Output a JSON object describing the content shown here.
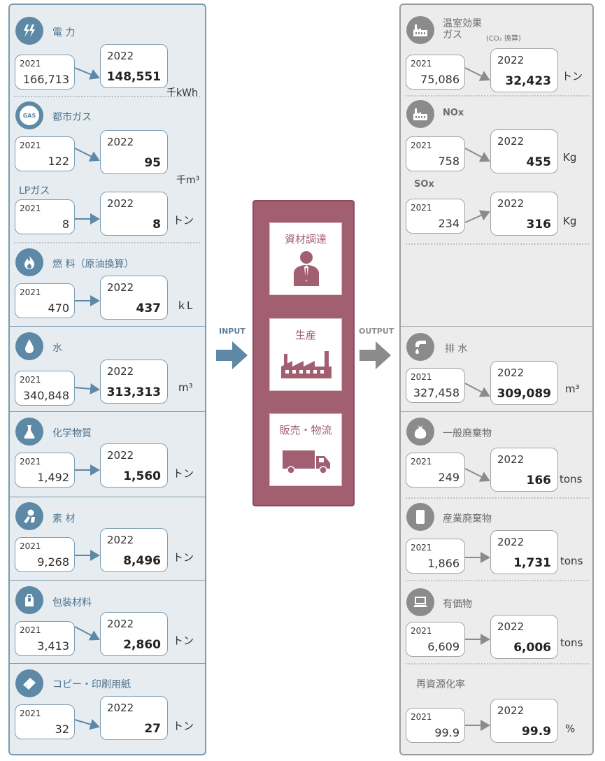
{
  "flow": {
    "input_label": "INPUT",
    "output_label": "OUTPUT"
  },
  "center": {
    "items": [
      "資材調達",
      "生産",
      "販売・物流"
    ]
  },
  "input": [
    {
      "label": "電 力",
      "y1": "2021",
      "v1": "166,713",
      "y2": "2022",
      "v2": "148,551",
      "unit": "千kWh",
      "icon": "electricity-icon"
    },
    {
      "label": "都市ガス",
      "y1": "2021",
      "v1": "122",
      "y2": "2022",
      "v2": "95",
      "unit": "千m³",
      "icon": "gas-icon",
      "icon_text": "GAS"
    },
    {
      "label": "LPガス",
      "y1": "2021",
      "v1": "8",
      "y2": "2022",
      "v2": "8",
      "unit": "トン"
    },
    {
      "label": "燃 料（原油換算）",
      "y1": "2021",
      "v1": "470",
      "y2": "2022",
      "v2": "437",
      "unit": "ｋL",
      "icon": "flame-icon"
    },
    {
      "label": "水",
      "y1": "2021",
      "v1": "340,848",
      "y2": "2022",
      "v2": "313,313",
      "unit": "m³",
      "icon": "water-drop-icon"
    },
    {
      "label": "化学物質",
      "y1": "2021",
      "v1": "1,492",
      "y2": "2022",
      "v2": "1,560",
      "unit": "トン",
      "icon": "flask-icon"
    },
    {
      "label": "素 材",
      "y1": "2021",
      "v1": "9,268",
      "y2": "2022",
      "v2": "8,496",
      "unit": "トン",
      "icon": "material-icon"
    },
    {
      "label": "包装材料",
      "y1": "2021",
      "v1": "3,413",
      "y2": "2022",
      "v2": "2,860",
      "unit": "トン",
      "icon": "package-icon"
    },
    {
      "label": "コピー・印刷用紙",
      "y1": "2021",
      "v1": "32",
      "y2": "2022",
      "v2": "27",
      "unit": "トン",
      "icon": "paper-icon"
    }
  ],
  "output": [
    {
      "label": "温室効果\nガス",
      "sublabel": "(CO₂ 換算)",
      "y1": "2021",
      "v1": "75,086",
      "y2": "2022",
      "v2": "32,423",
      "unit": "トン",
      "icon": "factory-icon"
    },
    {
      "label": "NOx",
      "y1": "2021",
      "v1": "758",
      "y2": "2022",
      "v2": "455",
      "unit": "Kg",
      "icon": "factory-icon"
    },
    {
      "label": "SOx",
      "y1": "2021",
      "v1": "234",
      "y2": "2022",
      "v2": "316",
      "unit": "Kg"
    },
    {
      "label": "排 水",
      "y1": "2021",
      "v1": "327,458",
      "y2": "2022",
      "v2": "309,089",
      "unit": "m³",
      "icon": "faucet-icon"
    },
    {
      "label": "一般廃棄物",
      "y1": "2021",
      "v1": "249",
      "y2": "2022",
      "v2": "166",
      "unit": "tons",
      "icon": "trash-bag-icon"
    },
    {
      "label": "産業廃棄物",
      "y1": "2021",
      "v1": "1,866",
      "y2": "2022",
      "v2": "1,731",
      "unit": "tons",
      "icon": "drum-icon"
    },
    {
      "label": "有価物",
      "y1": "2021",
      "v1": "6,609",
      "y2": "2022",
      "v2": "6,006",
      "unit": "tons",
      "icon": "computer-icon"
    },
    {
      "label": "再資源化率",
      "y1": "2021",
      "v1": "99.9",
      "y2": "2022",
      "v2": "99.9",
      "unit": "%"
    }
  ],
  "colors": {
    "input_accent": "#5d89a6",
    "output_accent": "#8b8b8b",
    "center_accent": "#a25f72"
  }
}
